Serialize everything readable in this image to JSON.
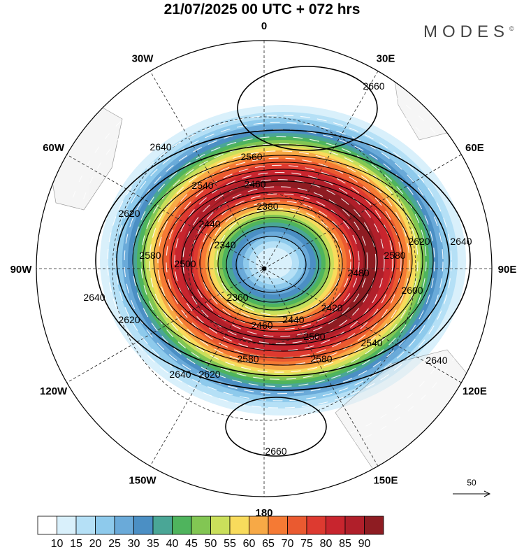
{
  "title": "21/07/2025  00 UTC  + 072 hrs",
  "brand": "MODES",
  "brand_mark": "©",
  "longitude_labels": [
    {
      "label": "0",
      "angle": 0
    },
    {
      "label": "30E",
      "angle": 30
    },
    {
      "label": "60E",
      "angle": 60
    },
    {
      "label": "90E",
      "angle": 90
    },
    {
      "label": "120E",
      "angle": 120
    },
    {
      "label": "150E",
      "angle": 150
    },
    {
      "label": "180",
      "angle": 180
    },
    {
      "label": "150W",
      "angle": 210
    },
    {
      "label": "120W",
      "angle": 240
    },
    {
      "label": "90W",
      "angle": 270
    },
    {
      "label": "60W",
      "angle": 300
    },
    {
      "label": "30W",
      "angle": 330
    }
  ],
  "contour_labels": [
    "2660",
    "2640",
    "2620",
    "2600",
    "2580",
    "2560",
    "2540",
    "2500",
    "2480",
    "2460",
    "2440",
    "2420",
    "2380",
    "2360",
    "2340"
  ],
  "wind_reference": {
    "label": "50",
    "icon": "arrow-right-icon"
  },
  "colorbar": {
    "levels": [
      "10",
      "15",
      "20",
      "25",
      "30",
      "35",
      "40",
      "45",
      "50",
      "55",
      "60",
      "65",
      "70",
      "75",
      "80",
      "85",
      "90"
    ],
    "colors": [
      "#ffffff",
      "#d9f0fb",
      "#b5e0f6",
      "#8ecaec",
      "#6aaad9",
      "#4b8fc4",
      "#4aa696",
      "#4fb45d",
      "#82c653",
      "#cadf5b",
      "#f8db5c",
      "#f7a946",
      "#f57a34",
      "#ea5a30",
      "#dd3a30",
      "#c8252e",
      "#b01f2a",
      "#8e1c22"
    ]
  }
}
